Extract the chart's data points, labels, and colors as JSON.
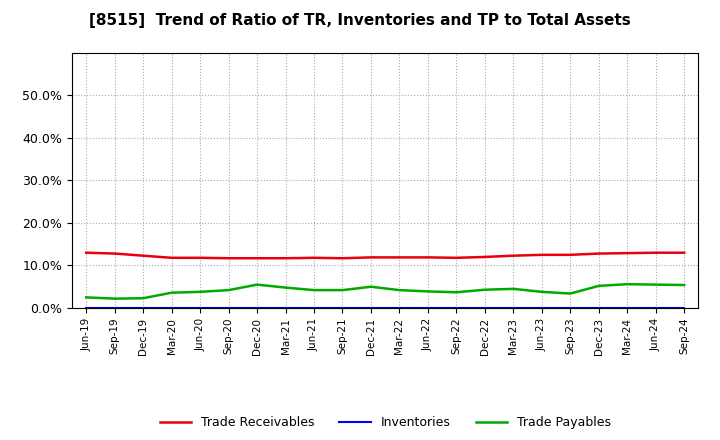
{
  "title": "[8515]  Trend of Ratio of TR, Inventories and TP to Total Assets",
  "x_labels": [
    "Jun-19",
    "Sep-19",
    "Dec-19",
    "Mar-20",
    "Jun-20",
    "Sep-20",
    "Dec-20",
    "Mar-21",
    "Jun-21",
    "Sep-21",
    "Dec-21",
    "Mar-22",
    "Jun-22",
    "Sep-22",
    "Dec-22",
    "Mar-23",
    "Jun-23",
    "Sep-23",
    "Dec-23",
    "Mar-24",
    "Jun-24",
    "Sep-24"
  ],
  "trade_receivables": [
    13.0,
    12.8,
    12.3,
    11.8,
    11.8,
    11.7,
    11.7,
    11.7,
    11.8,
    11.7,
    11.9,
    11.9,
    11.9,
    11.8,
    12.0,
    12.3,
    12.5,
    12.5,
    12.8,
    12.9,
    13.0,
    13.0
  ],
  "inventories": [
    0.0,
    0.0,
    0.0,
    0.0,
    0.0,
    0.0,
    0.0,
    0.0,
    0.0,
    0.0,
    0.0,
    0.0,
    0.0,
    0.0,
    0.0,
    0.0,
    0.0,
    0.0,
    0.0,
    0.0,
    0.0,
    0.0
  ],
  "trade_payables": [
    2.5,
    2.2,
    2.3,
    3.6,
    3.8,
    4.2,
    5.5,
    4.8,
    4.2,
    4.2,
    5.0,
    4.2,
    3.9,
    3.7,
    4.3,
    4.5,
    3.8,
    3.4,
    5.2,
    5.6,
    5.5,
    5.4
  ],
  "tr_color": "#e8000d",
  "inv_color": "#0000ff",
  "tp_color": "#00aa00",
  "ylim": [
    0,
    60
  ],
  "ytick_values": [
    0.0,
    10.0,
    20.0,
    30.0,
    40.0,
    50.0
  ],
  "ytick_labels": [
    "0.0%",
    "10.0%",
    "20.0%",
    "30.0%",
    "40.0%",
    "50.0%"
  ],
  "bg_color": "#ffffff",
  "plot_bg_color": "#ffffff",
  "grid_color": "#aaaaaa",
  "legend_labels": [
    "Trade Receivables",
    "Inventories",
    "Trade Payables"
  ]
}
